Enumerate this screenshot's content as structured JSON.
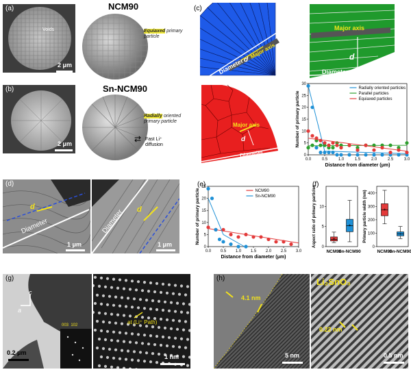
{
  "panels": {
    "a": {
      "label": "(a)",
      "title": "NCM90",
      "voids": "Voids",
      "scale": "2 μm",
      "note_hl": "Equiaxed",
      "note_rest": "primary particle"
    },
    "b": {
      "label": "(b)",
      "title": "Sn-NCM90",
      "scale": "2 μm",
      "note_hl": "Radially",
      "note_rest": "oriented primary particle",
      "diffusion": "Fast Li⁺ diffusion"
    },
    "c": {
      "label": "(c)",
      "diameter": "Diameter",
      "major_axis": "Major axis",
      "d": "d"
    },
    "d": {
      "label": "(d)",
      "diameter": "Diameter",
      "d": "d",
      "scale": "1 μm"
    },
    "e": {
      "label": "(e)"
    },
    "f": {
      "label": "(f)"
    },
    "g": {
      "label": "(g)",
      "c_axis": "c",
      "a_axis": "a",
      "scale1": "0.2 μm",
      "scale2": "1 nm",
      "spots": "003  102",
      "path": "at (Li⁺ Path)"
    },
    "h": {
      "label": "(h)",
      "compound": "Li₂SnO₃",
      "t1": "4.1 nm",
      "t2": "0.22 nm",
      "scale1": "5 nm",
      "scale2": "0.5 nm"
    }
  },
  "chart_data": [
    {
      "id": "c-plot",
      "type": "scatter",
      "xlabel": "Distance from diameter (μm)",
      "ylabel": "Number of primary particle",
      "xlim": [
        0,
        3.0
      ],
      "ylim": [
        0,
        30
      ],
      "xticks": [
        "0.0",
        "0.5",
        "1.0",
        "1.5",
        "2.0",
        "2.5",
        "3.0"
      ],
      "yticks": [
        "0",
        "5",
        "10",
        "15",
        "20",
        "25",
        "30"
      ],
      "legend_position": "top-right",
      "series": [
        {
          "name": "Radially oriented particles",
          "color": "#1e90d6",
          "x": [
            0.0,
            0.125,
            0.25,
            0.375,
            0.5,
            0.625,
            0.75,
            0.875,
            1.0,
            1.25,
            1.5,
            1.75,
            2.0,
            2.25,
            2.5,
            2.75,
            3.0
          ],
          "y": [
            29,
            20,
            3,
            1,
            1,
            1,
            1,
            0,
            0,
            0,
            0,
            0,
            0,
            0,
            0,
            0,
            0
          ],
          "fit": [
            [
              0,
              29
            ],
            [
              0.5,
              1.5
            ],
            [
              3.0,
              0.5
            ]
          ]
        },
        {
          "name": "Parallel particles",
          "color": "#2ea02e",
          "x": [
            0.0,
            0.125,
            0.25,
            0.375,
            0.5,
            0.625,
            0.75,
            0.875,
            1.0,
            1.25,
            1.5,
            1.75,
            2.0,
            2.25,
            2.5,
            2.75,
            3.0
          ],
          "y": [
            3,
            4,
            6,
            4,
            4,
            3,
            3,
            5,
            4,
            4,
            3,
            4,
            4,
            4,
            4,
            3,
            5
          ],
          "fit": [
            [
              0,
              3.8
            ],
            [
              3.0,
              4.0
            ]
          ]
        },
        {
          "name": "Equiaxed particles",
          "color": "#e33a3a",
          "x": [
            0.0,
            0.125,
            0.25,
            0.375,
            0.5,
            0.625,
            0.75,
            0.875,
            1.0,
            1.25,
            1.5,
            1.75,
            2.0,
            2.25,
            2.5,
            2.75,
            3.0
          ],
          "y": [
            10,
            8,
            7,
            6,
            5,
            4,
            5,
            4,
            3,
            4,
            2,
            4,
            2,
            3,
            1,
            2,
            1
          ],
          "fit": [
            [
              0,
              7
            ],
            [
              3.0,
              1.5
            ]
          ]
        }
      ]
    },
    {
      "id": "e-plot",
      "type": "scatter",
      "xlabel": "Distance from diameter (μm)",
      "ylabel": "Number of primary particle",
      "xlim": [
        0,
        3.0
      ],
      "ylim": [
        0,
        25
      ],
      "xticks": [
        "0.0",
        "0.5",
        "1.0",
        "1.5",
        "2.0",
        "2.5",
        "3.0"
      ],
      "yticks": [
        "0",
        "5",
        "10",
        "15",
        "20",
        "25"
      ],
      "legend_position": "top-right",
      "series": [
        {
          "name": "NCM90",
          "color": "#e33a3a",
          "x": [
            0.0,
            0.25,
            0.5,
            0.75,
            1.0,
            1.25,
            1.5,
            1.75,
            2.0,
            2.25,
            2.5,
            2.75
          ],
          "y": [
            8,
            7,
            7,
            5,
            4,
            5,
            4,
            4,
            3,
            2,
            2,
            1
          ],
          "fit": [
            [
              0,
              7.5
            ],
            [
              3.0,
              1.5
            ]
          ]
        },
        {
          "name": "Sn-NCM90",
          "color": "#1e90d6",
          "x": [
            0.0,
            0.125,
            0.25,
            0.375,
            0.5,
            0.75,
            1.0,
            1.25
          ],
          "y": [
            24,
            20,
            7,
            3,
            2,
            1,
            0,
            0
          ],
          "fit": [
            [
              0,
              20
            ],
            [
              0.5,
              5
            ],
            [
              1.2,
              0
            ]
          ]
        }
      ]
    },
    {
      "id": "f-aspect",
      "type": "box",
      "ylabel": "Aspect ratio of primary particles",
      "ylim": [
        0,
        15
      ],
      "yticks": [
        "0",
        "5",
        "10"
      ],
      "categories": [
        "NCM90",
        "Sn-NCM90"
      ],
      "boxes": [
        {
          "name": "NCM90",
          "color": "#e33a3a",
          "min": 1.0,
          "q1": 1.4,
          "median": 1.8,
          "q3": 2.4,
          "max": 3.6,
          "mean": 1.9
        },
        {
          "name": "Sn-NCM90",
          "color": "#1e90d6",
          "min": 1.2,
          "q1": 3.7,
          "median": 5.2,
          "q3": 6.8,
          "max": 11.5,
          "mean": 5.3
        }
      ]
    },
    {
      "id": "f-width",
      "type": "box",
      "ylabel": "Primary particle width (nm)",
      "ylim": [
        0,
        450
      ],
      "yticks": [
        "0",
        "100",
        "200",
        "300",
        "400"
      ],
      "categories": [
        "NCM90",
        "Sn-NCM90"
      ],
      "boxes": [
        {
          "name": "NCM90",
          "color": "#e33a3a",
          "min": 170,
          "q1": 230,
          "median": 275,
          "q3": 320,
          "max": 420,
          "mean": 275
        },
        {
          "name": "Sn-NCM90",
          "color": "#1e90d6",
          "min": 60,
          "q1": 80,
          "median": 95,
          "q3": 110,
          "max": 150,
          "mean": 95
        }
      ]
    }
  ]
}
